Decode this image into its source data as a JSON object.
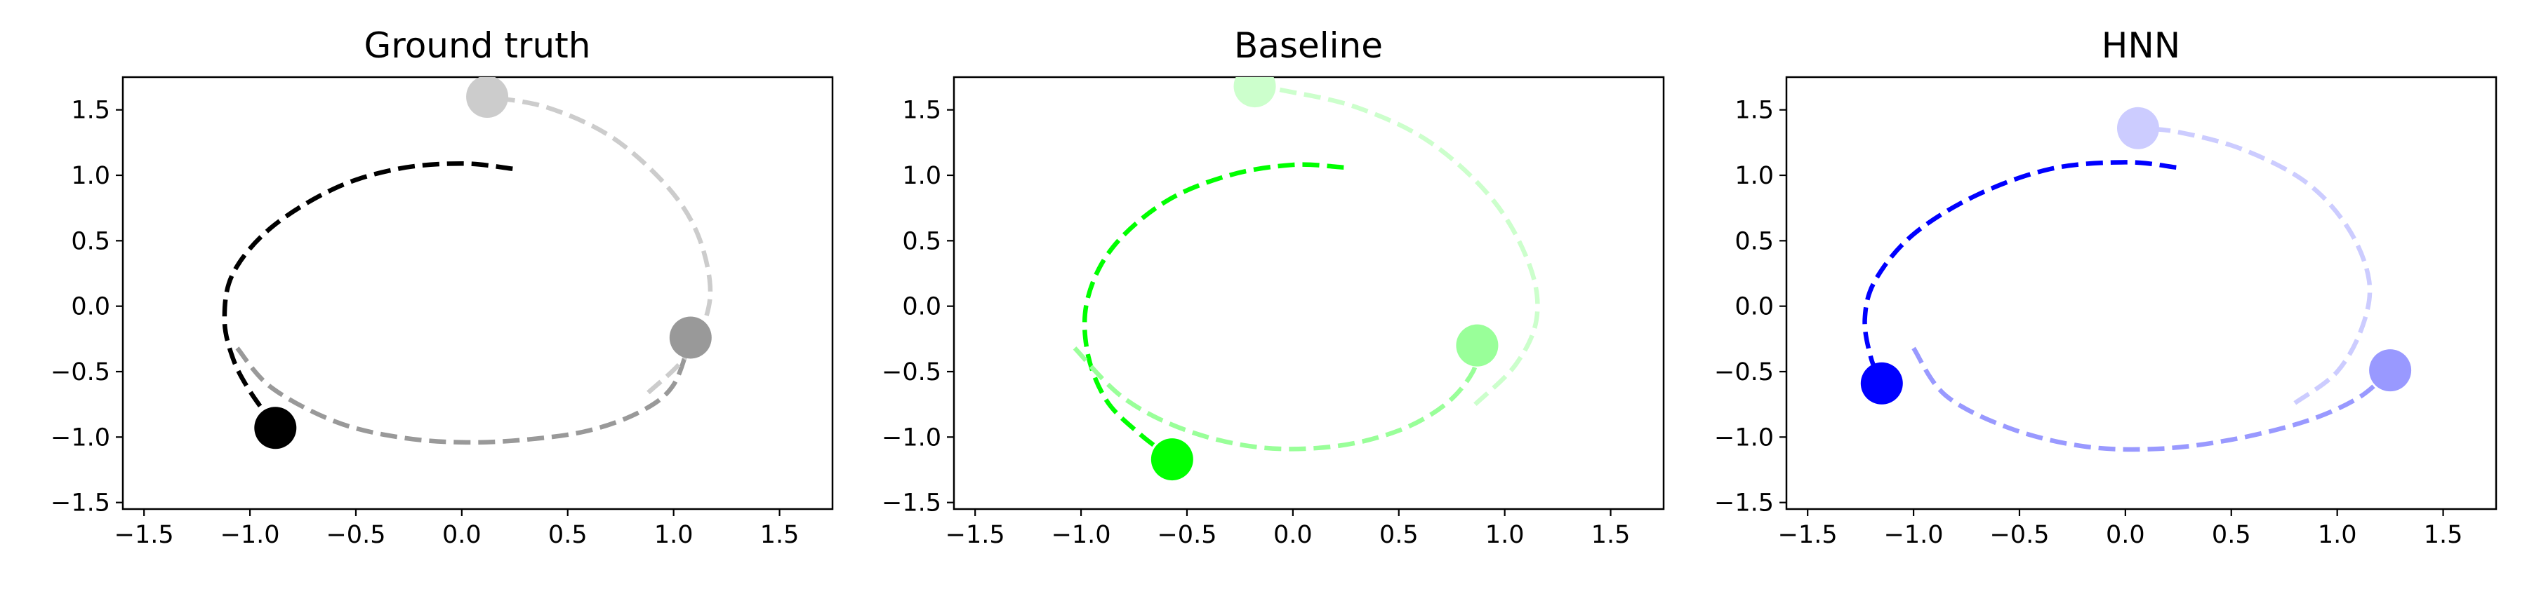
{
  "chart_data": [
    {
      "type": "line",
      "title": "Ground truth",
      "xlabel": "",
      "ylabel": "",
      "xlim": [
        -1.6,
        1.75
      ],
      "ylim": [
        -1.55,
        1.75
      ],
      "xticks": [
        -1.5,
        -1.0,
        -0.5,
        0.0,
        0.5,
        1.0,
        1.5
      ],
      "yticks": [
        -1.5,
        -1.0,
        -0.5,
        0.0,
        0.5,
        1.0,
        1.5
      ],
      "grid": false,
      "series": [
        {
          "color": "#000000",
          "points": [
            [
              0.24,
              1.05
            ],
            [
              0.0,
              1.09
            ],
            [
              -0.3,
              1.05
            ],
            [
              -0.6,
              0.9
            ],
            [
              -0.9,
              0.6
            ],
            [
              -1.08,
              0.25
            ],
            [
              -1.12,
              -0.1
            ],
            [
              -1.08,
              -0.4
            ],
            [
              -1.0,
              -0.65
            ],
            [
              -0.88,
              -0.92
            ]
          ],
          "marker": [
            -0.88,
            -0.93
          ]
        },
        {
          "color": "#999999",
          "points": [
            [
              -1.06,
              -0.32
            ],
            [
              -0.9,
              -0.62
            ],
            [
              -0.6,
              -0.88
            ],
            [
              -0.3,
              -1.0
            ],
            [
              0.0,
              -1.04
            ],
            [
              0.3,
              -1.02
            ],
            [
              0.6,
              -0.95
            ],
            [
              0.85,
              -0.8
            ],
            [
              1.0,
              -0.6
            ],
            [
              1.08,
              -0.24
            ]
          ],
          "marker": [
            1.08,
            -0.24
          ]
        },
        {
          "color": "#cccccc",
          "points": [
            [
              0.88,
              -0.66
            ],
            [
              1.05,
              -0.4
            ],
            [
              1.15,
              -0.1
            ],
            [
              1.17,
              0.2
            ],
            [
              1.1,
              0.6
            ],
            [
              0.95,
              0.95
            ],
            [
              0.7,
              1.3
            ],
            [
              0.4,
              1.52
            ],
            [
              0.12,
              1.6
            ]
          ],
          "marker": [
            0.12,
            1.6
          ]
        }
      ]
    },
    {
      "type": "line",
      "title": "Baseline",
      "xlabel": "",
      "ylabel": "",
      "xlim": [
        -1.6,
        1.75
      ],
      "ylim": [
        -1.55,
        1.75
      ],
      "xticks": [
        -1.5,
        -1.0,
        -0.5,
        0.0,
        0.5,
        1.0,
        1.5
      ],
      "yticks": [
        -1.5,
        -1.0,
        -0.5,
        0.0,
        0.5,
        1.0,
        1.5
      ],
      "grid": false,
      "series": [
        {
          "color": "#00ff00",
          "points": [
            [
              0.24,
              1.06
            ],
            [
              0.0,
              1.08
            ],
            [
              -0.3,
              1.0
            ],
            [
              -0.6,
              0.8
            ],
            [
              -0.85,
              0.45
            ],
            [
              -0.97,
              0.05
            ],
            [
              -0.97,
              -0.35
            ],
            [
              -0.88,
              -0.72
            ],
            [
              -0.72,
              -0.98
            ],
            [
              -0.58,
              -1.15
            ]
          ],
          "marker": [
            -0.57,
            -1.17
          ]
        },
        {
          "color": "#99ff99",
          "points": [
            [
              -1.03,
              -0.32
            ],
            [
              -0.8,
              -0.7
            ],
            [
              -0.5,
              -0.95
            ],
            [
              -0.15,
              -1.08
            ],
            [
              0.2,
              -1.07
            ],
            [
              0.5,
              -0.95
            ],
            [
              0.72,
              -0.75
            ],
            [
              0.85,
              -0.5
            ],
            [
              0.87,
              -0.3
            ]
          ],
          "marker": [
            0.87,
            -0.3
          ]
        },
        {
          "color": "#ccffcc",
          "points": [
            [
              0.86,
              -0.75
            ],
            [
              1.05,
              -0.45
            ],
            [
              1.15,
              -0.1
            ],
            [
              1.12,
              0.3
            ],
            [
              0.95,
              0.8
            ],
            [
              0.65,
              1.25
            ],
            [
              0.3,
              1.52
            ],
            [
              -0.05,
              1.65
            ],
            [
              -0.18,
              1.68
            ]
          ],
          "marker": [
            -0.18,
            1.68
          ]
        }
      ]
    },
    {
      "type": "line",
      "title": "HNN",
      "xlabel": "",
      "ylabel": "",
      "xlim": [
        -1.6,
        1.75
      ],
      "ylim": [
        -1.55,
        1.75
      ],
      "xticks": [
        -1.5,
        -1.0,
        -0.5,
        0.0,
        0.5,
        1.0,
        1.5
      ],
      "yticks": [
        -1.5,
        -1.0,
        -0.5,
        0.0,
        0.5,
        1.0,
        1.5
      ],
      "grid": false,
      "series": [
        {
          "color": "#0000ff",
          "points": [
            [
              0.24,
              1.06
            ],
            [
              0.0,
              1.1
            ],
            [
              -0.35,
              1.05
            ],
            [
              -0.7,
              0.85
            ],
            [
              -1.0,
              0.55
            ],
            [
              -1.18,
              0.2
            ],
            [
              -1.23,
              -0.1
            ],
            [
              -1.2,
              -0.4
            ],
            [
              -1.15,
              -0.58
            ]
          ],
          "marker": [
            -1.15,
            -0.59
          ]
        },
        {
          "color": "#9999ff",
          "points": [
            [
              -1.0,
              -0.32
            ],
            [
              -0.85,
              -0.68
            ],
            [
              -0.55,
              -0.93
            ],
            [
              -0.2,
              -1.07
            ],
            [
              0.15,
              -1.09
            ],
            [
              0.5,
              -1.02
            ],
            [
              0.85,
              -0.88
            ],
            [
              1.1,
              -0.7
            ],
            [
              1.25,
              -0.49
            ]
          ],
          "marker": [
            1.25,
            -0.49
          ]
        },
        {
          "color": "#ccccff",
          "points": [
            [
              0.8,
              -0.74
            ],
            [
              1.0,
              -0.5
            ],
            [
              1.12,
              -0.15
            ],
            [
              1.15,
              0.2
            ],
            [
              1.05,
              0.6
            ],
            [
              0.85,
              0.95
            ],
            [
              0.55,
              1.2
            ],
            [
              0.25,
              1.33
            ],
            [
              0.06,
              1.36
            ]
          ],
          "marker": [
            0.06,
            1.36
          ]
        }
      ]
    }
  ]
}
